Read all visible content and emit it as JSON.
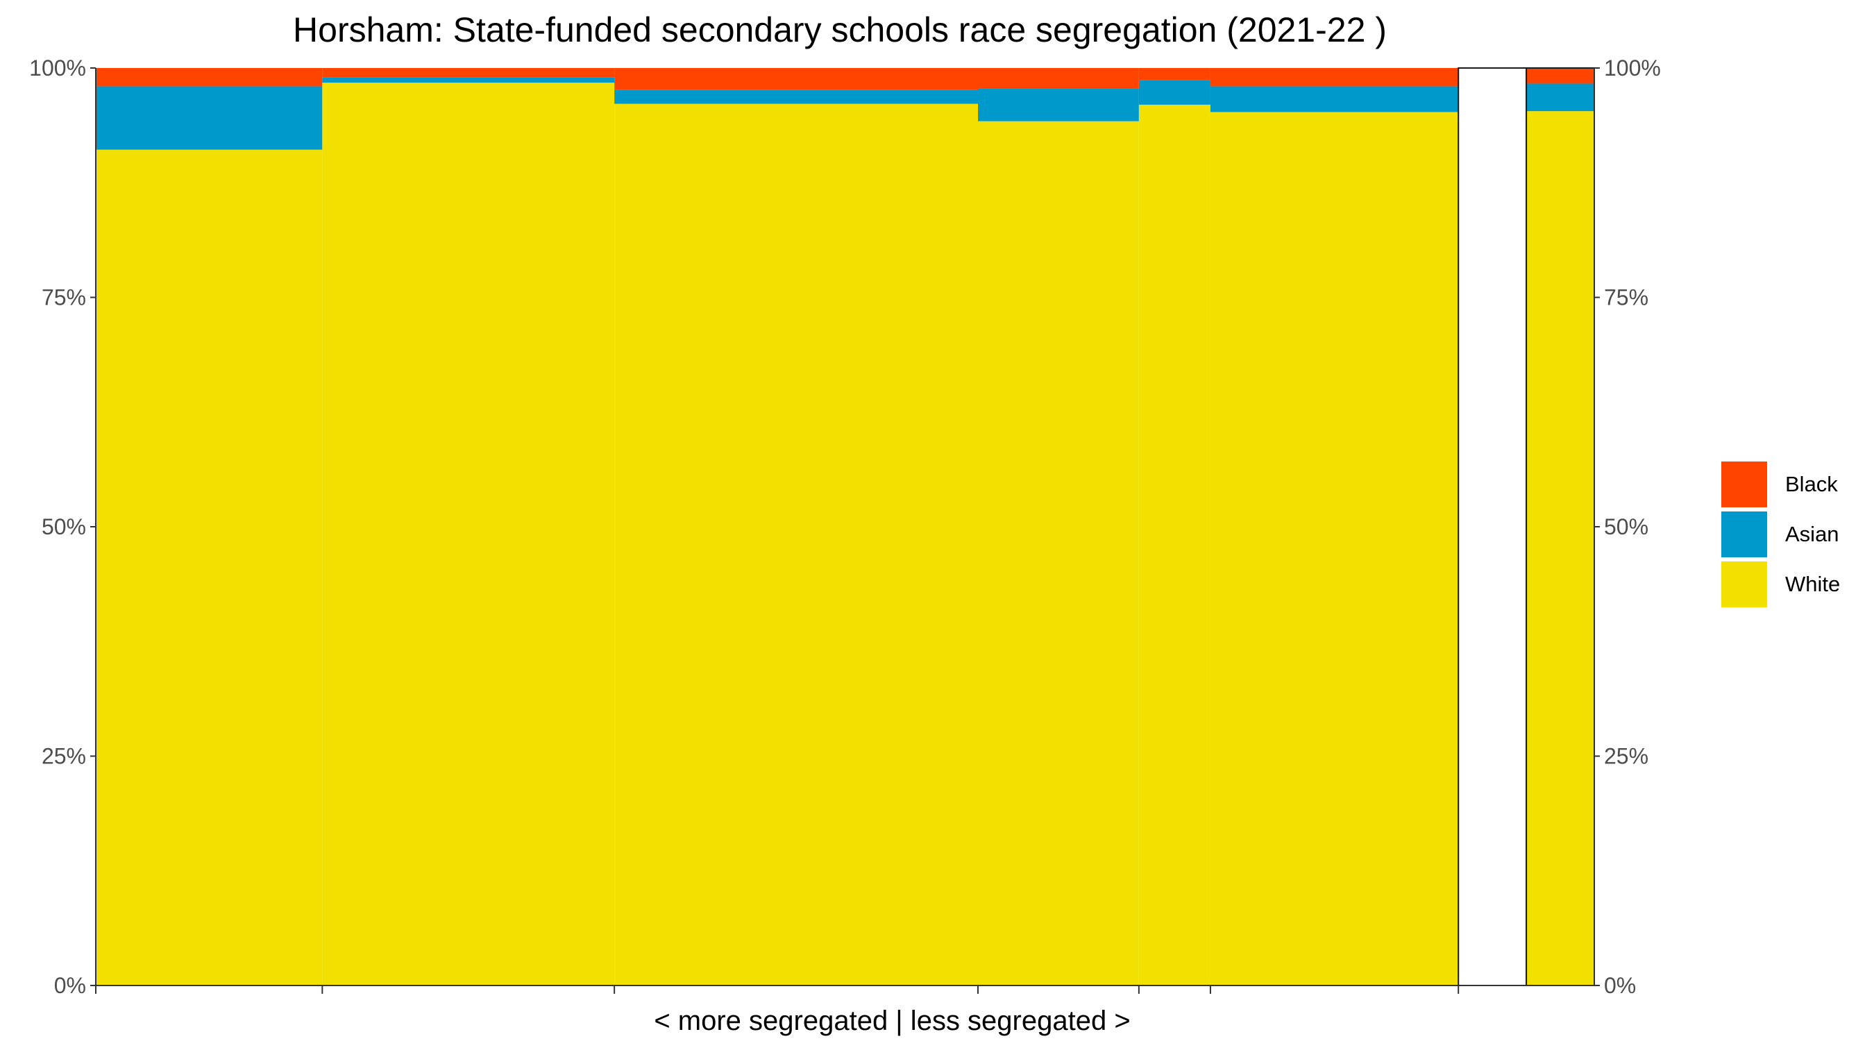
{
  "title": "Horsham: State-funded secondary schools race segregation (2021-22 )",
  "chart_data": {
    "type": "bar",
    "subtype": "marimekko (variable-width stacked bars)",
    "title": "Horsham: State-funded secondary schools race segregation (2021-22 )",
    "xlabel": "< more segregated | less segregated >",
    "ylabel": "",
    "ylim": [
      0,
      100
    ],
    "y_tick_labels": [
      "0%",
      "25%",
      "50%",
      "75%",
      "100%"
    ],
    "y_ticks": [
      0,
      25,
      50,
      75,
      100
    ],
    "grid": false,
    "legend_position": "right",
    "series": [
      {
        "name": "White",
        "color": "#F2E100"
      },
      {
        "name": "Asian",
        "color": "#0099CC"
      },
      {
        "name": "Black",
        "color": "#FF4400"
      }
    ],
    "legend_order": [
      "Black",
      "Asian",
      "White"
    ],
    "bars": [
      {
        "width": 19.0,
        "white": 91.1,
        "asian": 6.9,
        "black": 2.0
      },
      {
        "width": 24.5,
        "white": 98.4,
        "asian": 0.6,
        "black": 1.0
      },
      {
        "width": 30.5,
        "white": 96.1,
        "asian": 1.5,
        "black": 2.4
      },
      {
        "width": 13.5,
        "white": 94.2,
        "asian": 3.6,
        "black": 2.2
      },
      {
        "width": 6.0,
        "white": 96.0,
        "asian": 2.7,
        "black": 1.3
      },
      {
        "width": 20.8,
        "white": 95.2,
        "asian": 2.8,
        "black": 2.0
      },
      {
        "width": 5.7,
        "white": 0,
        "asian": 0,
        "black": 0,
        "outlined": true
      },
      {
        "width": 5.7,
        "white": 95.3,
        "asian": 3.0,
        "black": 1.7,
        "outlined": true
      }
    ]
  }
}
